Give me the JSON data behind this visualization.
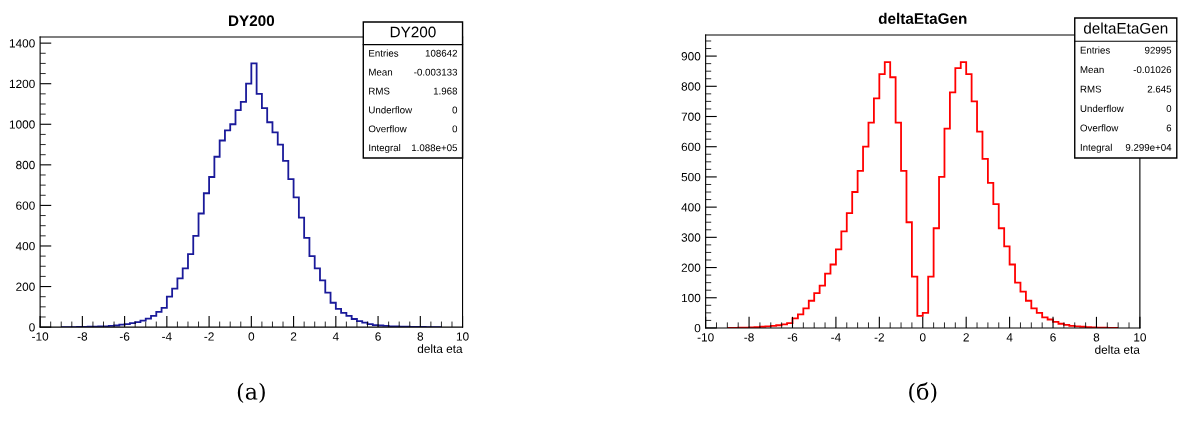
{
  "chart_data": [
    {
      "type": "histogram",
      "title": "DY200",
      "xlabel": "delta eta",
      "color": "#1a1a9a",
      "bins": [
        -9,
        -8.75,
        -8.5,
        -8.25,
        -8,
        -7.75,
        -7.5,
        -7.25,
        -7,
        -6.75,
        -6.5,
        -6.25,
        -6,
        -5.75,
        -5.5,
        -5.25,
        -5,
        -4.75,
        -4.5,
        -4.25,
        -4,
        -3.75,
        -3.5,
        -3.25,
        -3,
        -2.75,
        -2.5,
        -2.25,
        -2,
        -1.75,
        -1.5,
        -1.25,
        -1,
        -0.75,
        -0.5,
        -0.25,
        0,
        0.25,
        0.5,
        0.75,
        1,
        1.25,
        1.5,
        1.75,
        2,
        2.25,
        2.5,
        2.75,
        3,
        3.25,
        3.5,
        3.75,
        4,
        4.25,
        4.5,
        4.75,
        5,
        5.25,
        5.5,
        5.75,
        6,
        6.25,
        6.5,
        6.75,
        7,
        7.25,
        7.5,
        7.75,
        8,
        8.25,
        8.5,
        8.75,
        9
      ],
      "values": [
        0,
        0,
        0,
        1,
        1,
        2,
        2,
        3,
        4,
        6,
        8,
        12,
        15,
        20,
        25,
        32,
        42,
        55,
        75,
        95,
        150,
        190,
        240,
        290,
        360,
        450,
        560,
        660,
        740,
        840,
        920,
        970,
        1000,
        1070,
        1110,
        1200,
        1300,
        1150,
        1080,
        1010,
        960,
        900,
        820,
        730,
        640,
        540,
        440,
        350,
        290,
        230,
        170,
        120,
        90,
        70,
        55,
        40,
        30,
        22,
        15,
        10,
        8,
        6,
        4,
        3,
        2,
        2,
        1,
        1,
        1,
        0,
        0,
        0
      ],
      "xlim": [
        -10,
        10
      ],
      "xticks": [
        -10,
        -8,
        -6,
        -4,
        -2,
        0,
        2,
        4,
        6,
        8,
        10
      ],
      "ylim": [
        0,
        1430
      ],
      "yticks": [
        0,
        200,
        400,
        600,
        800,
        1000,
        1200,
        1400
      ],
      "annotations": [
        "(а)",
        "DY200",
        "Entries",
        "108642",
        "Mean",
        "-0.003133",
        "RMS",
        "1.968",
        "Underflow",
        "0",
        "Overflow",
        "0",
        "Integral",
        "1.088e+05"
      ]
    },
    {
      "type": "histogram",
      "title": "deltaEtaGen",
      "xlabel": "delta eta",
      "color": "#ff0000",
      "bins": [
        -9,
        -8.75,
        -8.5,
        -8.25,
        -8,
        -7.75,
        -7.5,
        -7.25,
        -7,
        -6.75,
        -6.5,
        -6.25,
        -6,
        -5.75,
        -5.5,
        -5.25,
        -5,
        -4.75,
        -4.5,
        -4.25,
        -4,
        -3.75,
        -3.5,
        -3.25,
        -3,
        -2.75,
        -2.5,
        -2.25,
        -2,
        -1.75,
        -1.5,
        -1.25,
        -1,
        -0.75,
        -0.5,
        -0.25,
        0,
        0.25,
        0.5,
        0.75,
        1,
        1.25,
        1.5,
        1.75,
        2,
        2.25,
        2.5,
        2.75,
        3,
        3.25,
        3.5,
        3.75,
        4,
        4.25,
        4.5,
        4.75,
        5,
        5.25,
        5.5,
        5.75,
        6,
        6.25,
        6.5,
        6.75,
        7,
        7.25,
        7.5,
        7.75,
        8,
        8.25,
        8.5,
        8.75,
        9
      ],
      "values": [
        0,
        0,
        1,
        1,
        2,
        3,
        4,
        5,
        7,
        9,
        12,
        16,
        32,
        45,
        65,
        90,
        115,
        140,
        180,
        210,
        260,
        320,
        380,
        450,
        520,
        600,
        680,
        760,
        840,
        880,
        830,
        680,
        520,
        350,
        170,
        40,
        50,
        170,
        330,
        500,
        660,
        780,
        860,
        880,
        840,
        750,
        650,
        560,
        480,
        410,
        330,
        270,
        210,
        150,
        120,
        90,
        65,
        50,
        35,
        28,
        20,
        14,
        10,
        7,
        5,
        4,
        3,
        2,
        1,
        1,
        0,
        0
      ],
      "xlim": [
        -10,
        10
      ],
      "xticks": [
        -10,
        -8,
        -6,
        -4,
        -2,
        0,
        2,
        4,
        6,
        8,
        10
      ],
      "ylim": [
        0,
        970
      ],
      "yticks": [
        0,
        100,
        200,
        300,
        400,
        500,
        600,
        700,
        800,
        900
      ],
      "annotations": [
        "(б)",
        "deltaEtaGen",
        "Entries",
        "92995",
        "Mean",
        "-0.01026",
        "RMS",
        "2.645",
        "Underflow",
        "0",
        "Overflow",
        "6",
        "Integral",
        "9.299e+04"
      ]
    }
  ]
}
